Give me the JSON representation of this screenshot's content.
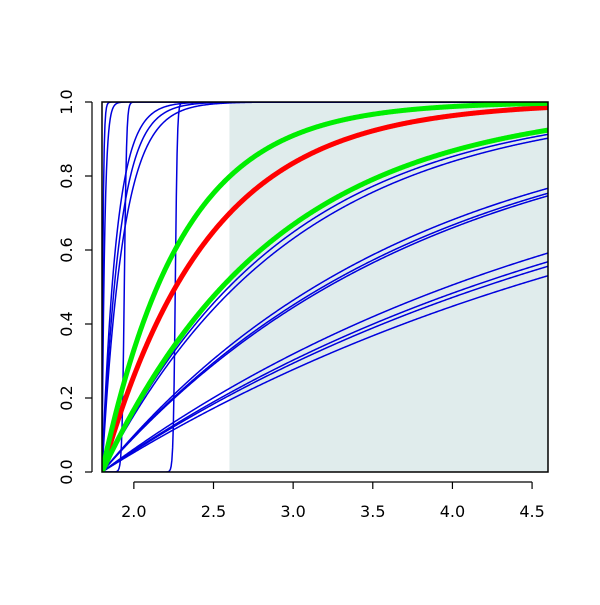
{
  "chart_data": {
    "type": "line",
    "title": "",
    "xlabel": "",
    "ylabel": "",
    "xlim": [
      1.8,
      4.6
    ],
    "ylim": [
      0.0,
      1.0
    ],
    "x_ticks": [
      "2.0",
      "2.5",
      "3.0",
      "3.5",
      "4.0",
      "4.5"
    ],
    "x_tick_values": [
      2.0,
      2.5,
      3.0,
      3.5,
      4.0,
      4.5
    ],
    "y_ticks": [
      "0.0",
      "0.2",
      "0.4",
      "0.6",
      "0.8",
      "1.0"
    ],
    "y_tick_values": [
      0.0,
      0.2,
      0.4,
      0.6,
      0.8,
      1.0
    ],
    "shaded_region": {
      "x_start": 2.6,
      "x_end": 4.6,
      "color": "#e0ecec"
    },
    "grid": false,
    "legend": "none",
    "x_start": 1.8,
    "series": [
      {
        "color": "#ff0000",
        "width": 5,
        "model": "exp",
        "rate": 1.5
      },
      {
        "color": "#00ee00",
        "width": 5,
        "model": "exp",
        "rate": 2.0
      },
      {
        "color": "#00ee00",
        "width": 5,
        "model": "exp",
        "rate": 0.92
      },
      {
        "color": "#0000dd",
        "width": 1.5,
        "model": "exp",
        "rate": 0.87
      },
      {
        "color": "#0000dd",
        "width": 1.5,
        "model": "exp",
        "rate": 0.83
      },
      {
        "color": "#0000dd",
        "width": 1.5,
        "model": "exp",
        "rate": 0.52
      },
      {
        "color": "#0000dd",
        "width": 1.5,
        "model": "exp",
        "rate": 0.5
      },
      {
        "color": "#0000dd",
        "width": 1.5,
        "model": "exp",
        "rate": 0.49
      },
      {
        "color": "#0000dd",
        "width": 1.5,
        "model": "exp",
        "rate": 0.32
      },
      {
        "color": "#0000dd",
        "width": 1.5,
        "model": "exp",
        "rate": 0.3
      },
      {
        "color": "#0000dd",
        "width": 1.5,
        "model": "exp",
        "rate": 0.29
      },
      {
        "color": "#0000dd",
        "width": 1.5,
        "model": "exp",
        "rate": 0.27
      },
      {
        "color": "#0000dd",
        "width": 1.5,
        "model": "exp",
        "rate": 7.5
      },
      {
        "color": "#0000dd",
        "width": 1.5,
        "model": "exp",
        "rate": 9.0
      },
      {
        "color": "#0000dd",
        "width": 1.5,
        "model": "exp",
        "rate": 11.0
      },
      {
        "color": "#0000dd",
        "width": 1.5,
        "model": "exp",
        "rate": 60.0
      },
      {
        "color": "#0000dd",
        "width": 1.5,
        "model": "exp",
        "rate": 150.0
      },
      {
        "color": "#0000dd",
        "width": 1.5,
        "model": "logistic",
        "center": 1.94,
        "steepness": 140
      },
      {
        "color": "#0000dd",
        "width": 1.5,
        "model": "logistic",
        "center": 2.26,
        "steepness": 160
      }
    ]
  }
}
